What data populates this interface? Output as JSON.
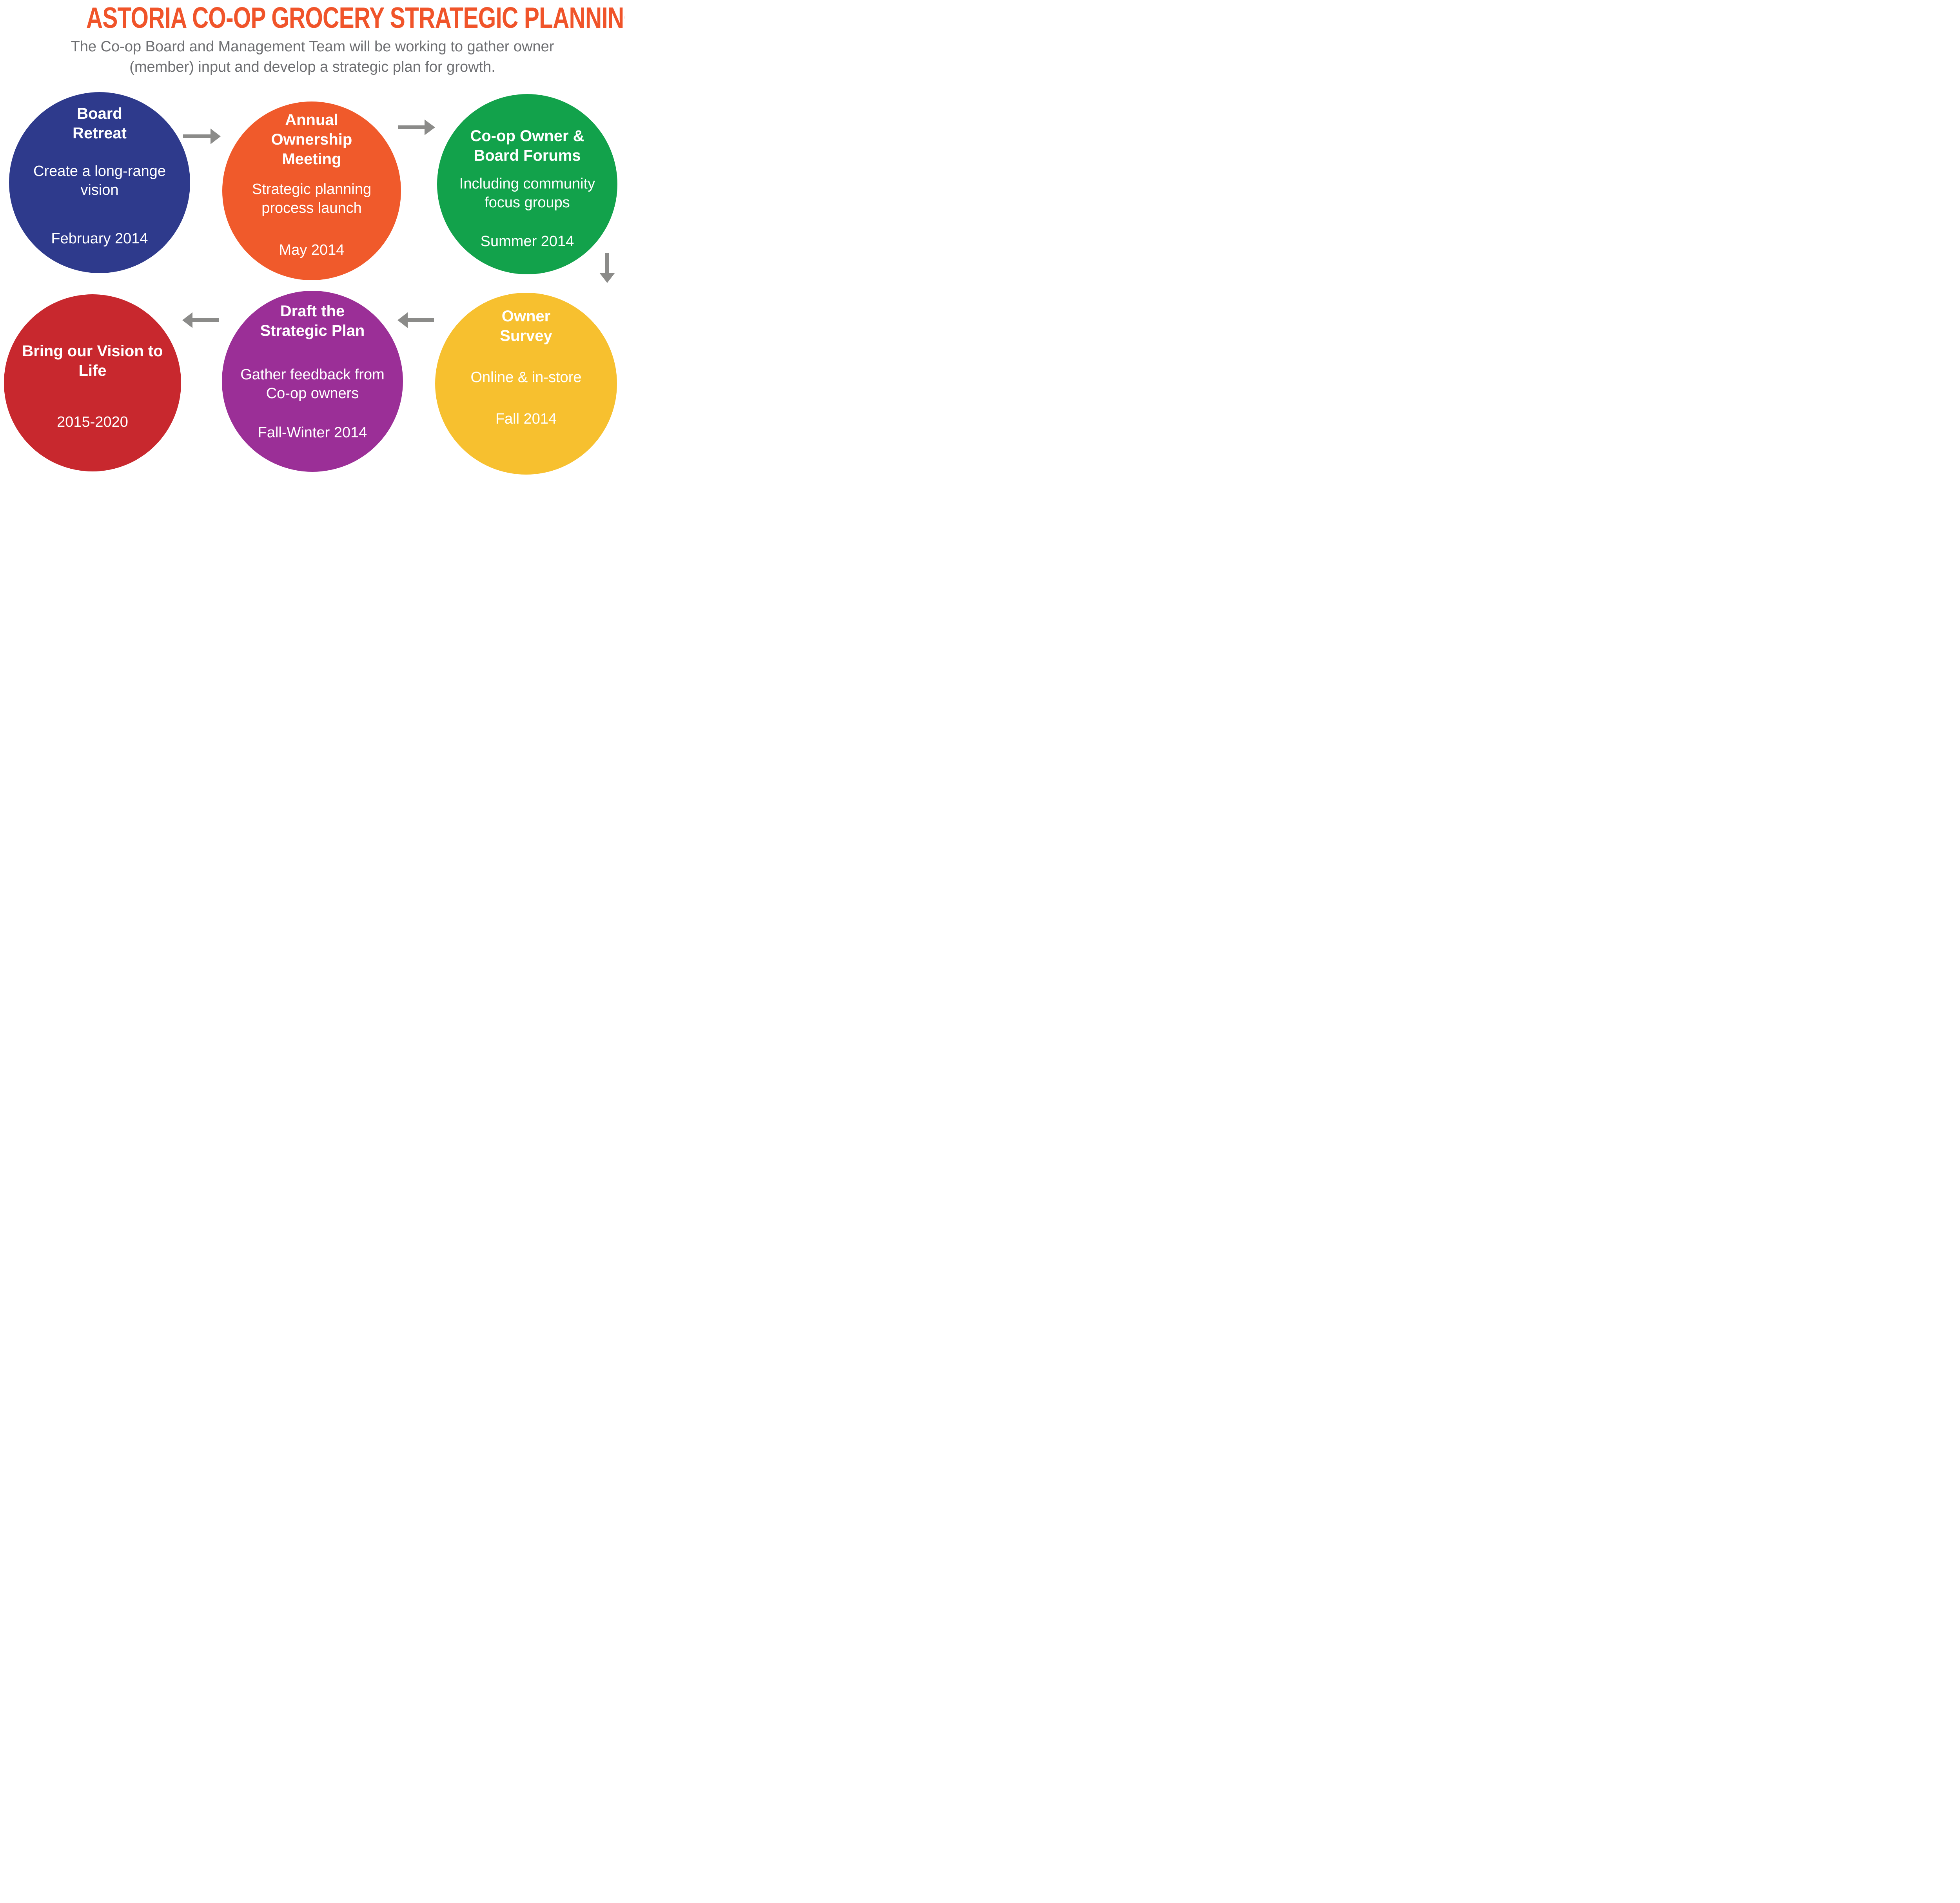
{
  "header": {
    "title": "ASTORIA CO-OP GROCERY STRATEGIC PLANNING MAP",
    "title_color": "#f0542a",
    "subtitle": "The Co-op Board and Management Team will be working to gather owner\n(member) input and develop a strategic plan for growth.",
    "subtitle_color": "#6e6f72"
  },
  "circle_text_color": "#ffffff",
  "steps": [
    {
      "name": "board-retreat",
      "circle_color": "#2e3a8c",
      "heading": "Board\nRetreat",
      "body": "Create a long-range\nvision",
      "date": "February 2014"
    },
    {
      "name": "annual-ownership-meeting",
      "circle_color": "#f05a2b",
      "heading": "Annual\nOwnership\nMeeting",
      "body": "Strategic planning\nprocess launch",
      "date": "May 2014"
    },
    {
      "name": "coop-owner-board-forums",
      "circle_color": "#12a24b",
      "heading": "Co-op Owner &\nBoard Forums",
      "body": "Including community\nfocus groups",
      "date": "Summer 2014"
    },
    {
      "name": "owner-survey",
      "circle_color": "#f7c02f",
      "heading": "Owner\nSurvey",
      "body": "Online & in-store",
      "date": "Fall 2014"
    },
    {
      "name": "draft-strategic-plan",
      "circle_color": "#9b2f97",
      "heading": "Draft the\nStrategic Plan",
      "body": "Gather feedback from\nCo-op owners",
      "date": "Fall-Winter 2014"
    },
    {
      "name": "bring-vision-to-life",
      "circle_color": "#c8282e",
      "heading": "Bring our Vision to\nLife",
      "date": "2015-2020"
    }
  ],
  "arrows": {
    "color": "#8b8b89",
    "items": [
      {
        "from": "board-retreat",
        "to": "annual-ownership-meeting",
        "direction": "right"
      },
      {
        "from": "annual-ownership-meeting",
        "to": "coop-owner-board-forums",
        "direction": "right"
      },
      {
        "from": "coop-owner-board-forums",
        "to": "owner-survey",
        "direction": "down"
      },
      {
        "from": "owner-survey",
        "to": "draft-strategic-plan",
        "direction": "left"
      },
      {
        "from": "draft-strategic-plan",
        "to": "bring-vision-to-life",
        "direction": "left"
      }
    ]
  }
}
